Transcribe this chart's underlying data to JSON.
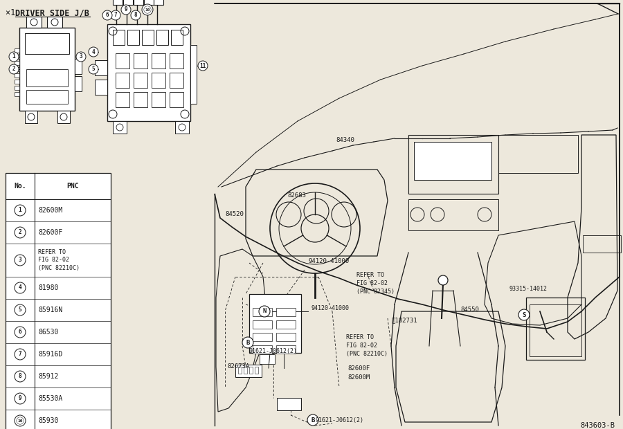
{
  "title_part1": "×1 ",
  "title_part2": "DRIVER SIDE J/B",
  "diagram_id": "843603-B",
  "bg_color": "#ede8dc",
  "line_color": "#1a1a1a",
  "table_data": [
    {
      "no": "1",
      "pnc": "82600M"
    },
    {
      "no": "2",
      "pnc": "82600F"
    },
    {
      "no": "3",
      "pnc": "REFER TO\nFIG 82-02\n(PNC 82210C)"
    },
    {
      "no": "4",
      "pnc": "81980"
    },
    {
      "no": "5",
      "pnc": "85916N"
    },
    {
      "no": "6",
      "pnc": "86530"
    },
    {
      "no": "7",
      "pnc": "85916D"
    },
    {
      "no": "8",
      "pnc": "85912"
    },
    {
      "no": "9",
      "pnc": "85530A"
    },
    {
      "no": "10",
      "pnc": "85930"
    },
    {
      "no": "11",
      "pnc": "REFER TO\nFIG 82-02\n(PNC 82345)"
    }
  ]
}
